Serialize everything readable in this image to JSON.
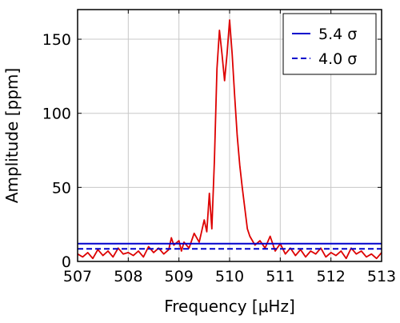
{
  "chart_data": {
    "type": "line",
    "title": "",
    "xlabel": "Frequency [μHz]",
    "ylabel": "Amplitude [ppm]",
    "xlim": [
      507,
      513
    ],
    "ylim": [
      0,
      170
    ],
    "xticks": [
      507,
      508,
      509,
      510,
      511,
      512,
      513
    ],
    "yticks": [
      0,
      50,
      100,
      150
    ],
    "xtick_labels": [
      "507",
      "508",
      "509",
      "510",
      "511",
      "512",
      "513"
    ],
    "ytick_labels": [
      "0",
      "50",
      "100",
      "150"
    ],
    "grid": true,
    "legend_position": "top-right",
    "series": [
      {
        "color": "#dd0000",
        "style": "solid",
        "x": [
          507.0,
          507.1,
          507.2,
          507.3,
          507.4,
          507.5,
          507.6,
          507.7,
          507.8,
          507.9,
          508.0,
          508.1,
          508.2,
          508.3,
          508.4,
          508.5,
          508.6,
          508.7,
          508.8,
          508.85,
          508.9,
          509.0,
          509.05,
          509.1,
          509.2,
          509.3,
          509.4,
          509.5,
          509.55,
          509.6,
          509.65,
          509.7,
          509.75,
          509.8,
          509.85,
          509.9,
          509.95,
          510.0,
          510.05,
          510.1,
          510.15,
          510.2,
          510.25,
          510.3,
          510.35,
          510.4,
          510.5,
          510.6,
          510.7,
          510.8,
          510.9,
          511.0,
          511.1,
          511.2,
          511.3,
          511.4,
          511.5,
          511.6,
          511.7,
          511.8,
          511.9,
          512.0,
          512.1,
          512.2,
          512.3,
          512.4,
          512.5,
          512.6,
          512.7,
          512.8,
          512.9,
          513.0
        ],
        "y": [
          5,
          3,
          6,
          2,
          8,
          4,
          7,
          3,
          9,
          5,
          6,
          4,
          7,
          3,
          10,
          6,
          9,
          5,
          8,
          16,
          11,
          14,
          7,
          13,
          9,
          19,
          13,
          28,
          20,
          46,
          22,
          68,
          130,
          156,
          140,
          122,
          140,
          163,
          140,
          112,
          85,
          65,
          50,
          36,
          22,
          17,
          11,
          14,
          9,
          17,
          7,
          12,
          5,
          9,
          4,
          8,
          3,
          7,
          5,
          9,
          3,
          6,
          4,
          7,
          2,
          9,
          5,
          7,
          3,
          5,
          2,
          6
        ]
      }
    ],
    "reference_lines": [
      {
        "name": "5.4 σ",
        "y": 12,
        "color": "#0000cc",
        "style": "solid"
      },
      {
        "name": "4.0 σ",
        "y": 8.5,
        "color": "#0000cc",
        "style": "dashed"
      }
    ]
  }
}
